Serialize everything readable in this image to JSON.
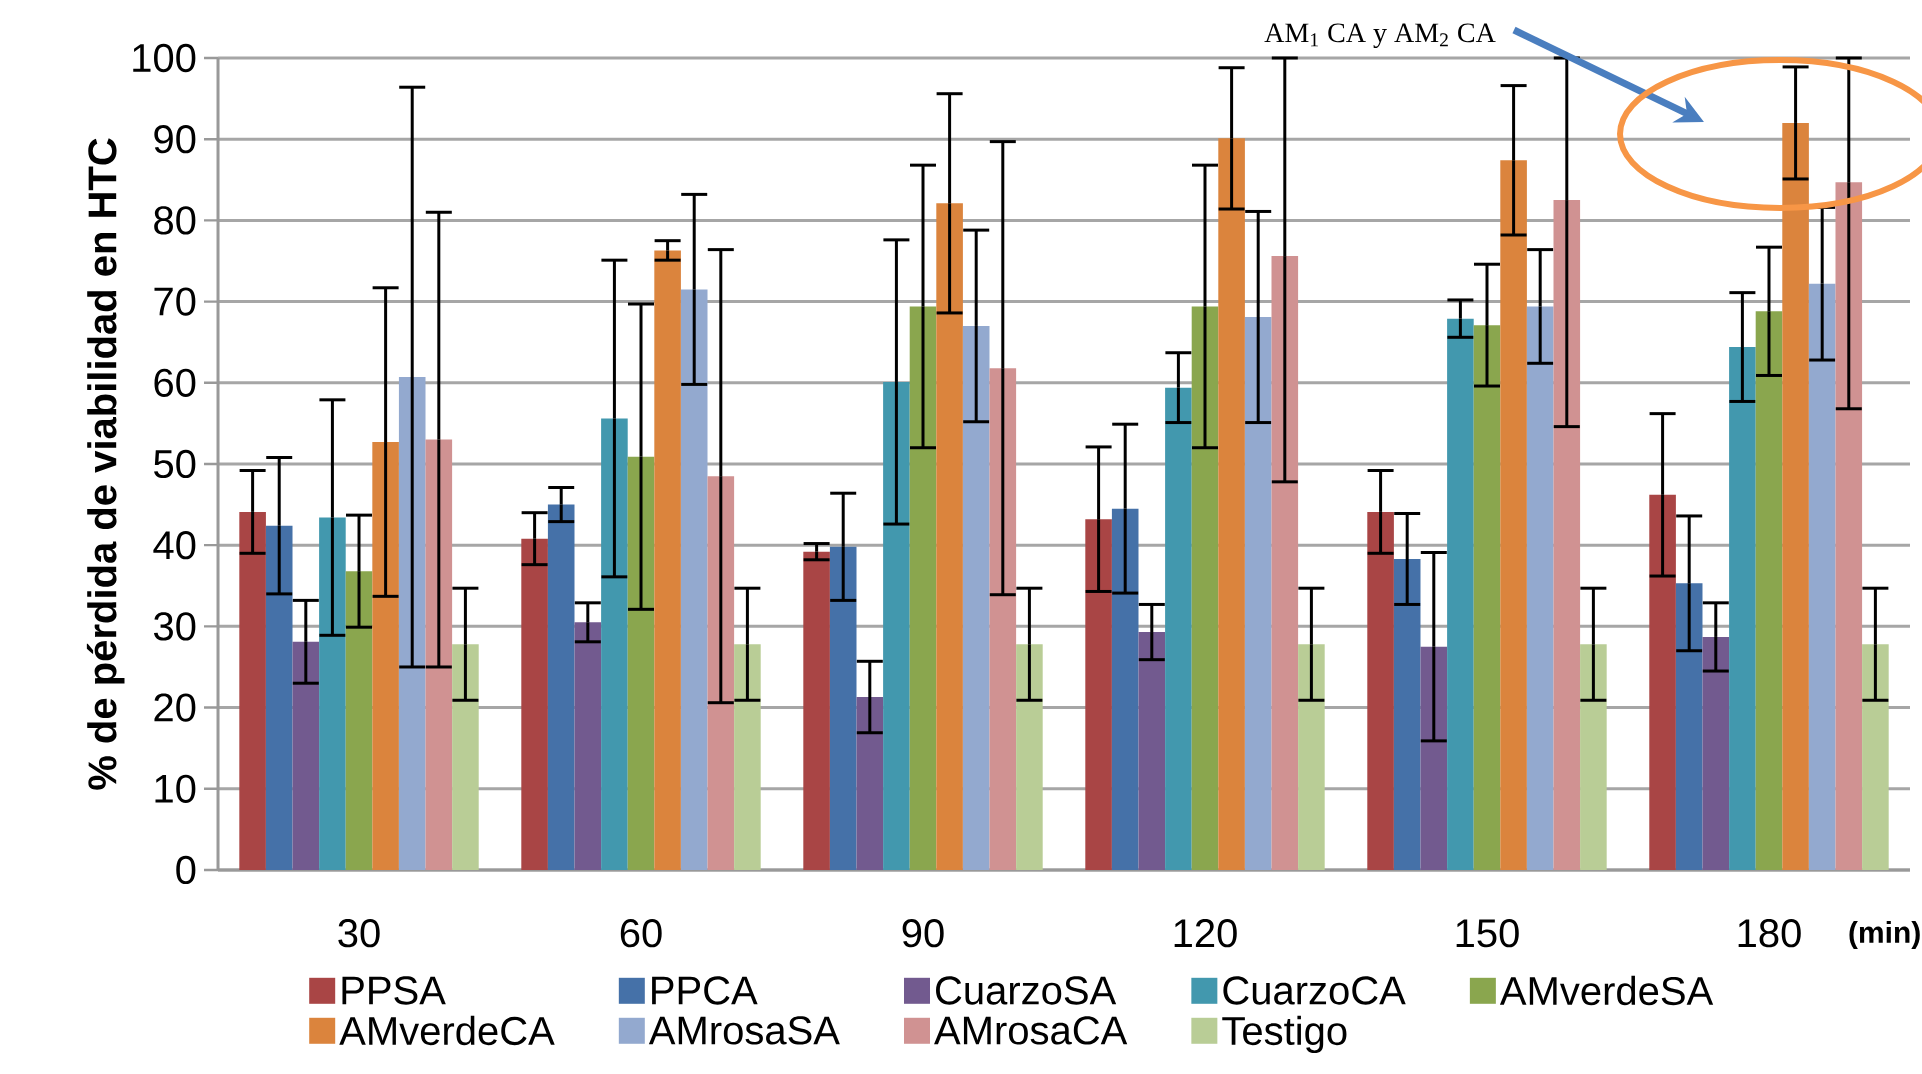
{
  "chart_data": {
    "type": "bar",
    "ylabel": "% de pérdida  de viabilidad en HTC",
    "xlabel": "(min)",
    "categories": [
      "30",
      "60",
      "90",
      "120",
      "150",
      "180"
    ],
    "series": [
      {
        "name": "PPSA",
        "color": "#a94545",
        "values": [
          44.1,
          40.8,
          39.2,
          43.2,
          44.1,
          46.2
        ],
        "errors": [
          5.1,
          3.2,
          1.0,
          8.9,
          5.1,
          10.0
        ]
      },
      {
        "name": "PPCA",
        "color": "#4571a8",
        "values": [
          42.4,
          45.0,
          39.8,
          44.5,
          38.3,
          35.3
        ],
        "errors": [
          8.4,
          2.1,
          6.6,
          10.4,
          5.6,
          8.3
        ]
      },
      {
        "name": "CuarzoSA",
        "color": "#725a8f",
        "values": [
          28.1,
          30.5,
          21.3,
          29.3,
          27.5,
          28.7
        ],
        "errors": [
          5.1,
          2.4,
          4.4,
          3.4,
          11.6,
          4.2
        ]
      },
      {
        "name": "CuarzoCA",
        "color": "#4298ae",
        "values": [
          43.4,
          55.6,
          60.1,
          59.4,
          67.9,
          64.4
        ],
        "errors": [
          14.5,
          19.5,
          17.5,
          4.3,
          2.3,
          6.7
        ]
      },
      {
        "name": "AMverdeSA",
        "color": "#8aa64e",
        "values": [
          36.8,
          50.9,
          69.4,
          69.4,
          67.1,
          68.8
        ],
        "errors": [
          6.9,
          18.8,
          17.4,
          17.4,
          7.5,
          7.9
        ]
      },
      {
        "name": "AMverdeCA",
        "color": "#db843d",
        "values": [
          52.7,
          76.3,
          82.1,
          90.1,
          87.4,
          92.0
        ],
        "errors": [
          19.0,
          1.2,
          13.5,
          8.7,
          9.2,
          6.9
        ]
      },
      {
        "name": "AMrosaSA",
        "color": "#93a9cf",
        "values": [
          60.7,
          71.5,
          67.0,
          68.1,
          69.4,
          72.2
        ],
        "errors": [
          35.7,
          11.7,
          11.8,
          13.0,
          7.0,
          9.4
        ]
      },
      {
        "name": "AMrosaCA",
        "color": "#d09292",
        "values": [
          53.0,
          48.5,
          61.8,
          75.6,
          82.5,
          84.7
        ],
        "errors": [
          28.0,
          27.9,
          27.9,
          [
            47.8,
            100
          ],
          [
            54.6,
            100
          ],
          [
            56.8,
            100
          ]
        ]
      },
      {
        "name": "Testigo",
        "color": "#b9cd96",
        "values": [
          27.8,
          27.8,
          27.8,
          27.8,
          27.8,
          27.8
        ],
        "errors": [
          6.9,
          6.9,
          6.9,
          6.9,
          6.9,
          6.9
        ]
      }
    ],
    "ylim": [
      0,
      100
    ],
    "yticks": [
      0,
      10,
      20,
      30,
      40,
      50,
      60,
      70,
      80,
      90,
      100
    ],
    "grid": "y",
    "legend": "bottom",
    "annotations": [
      "AM$_{1}$ CA y AM$_{2}$ CA"
    ]
  }
}
